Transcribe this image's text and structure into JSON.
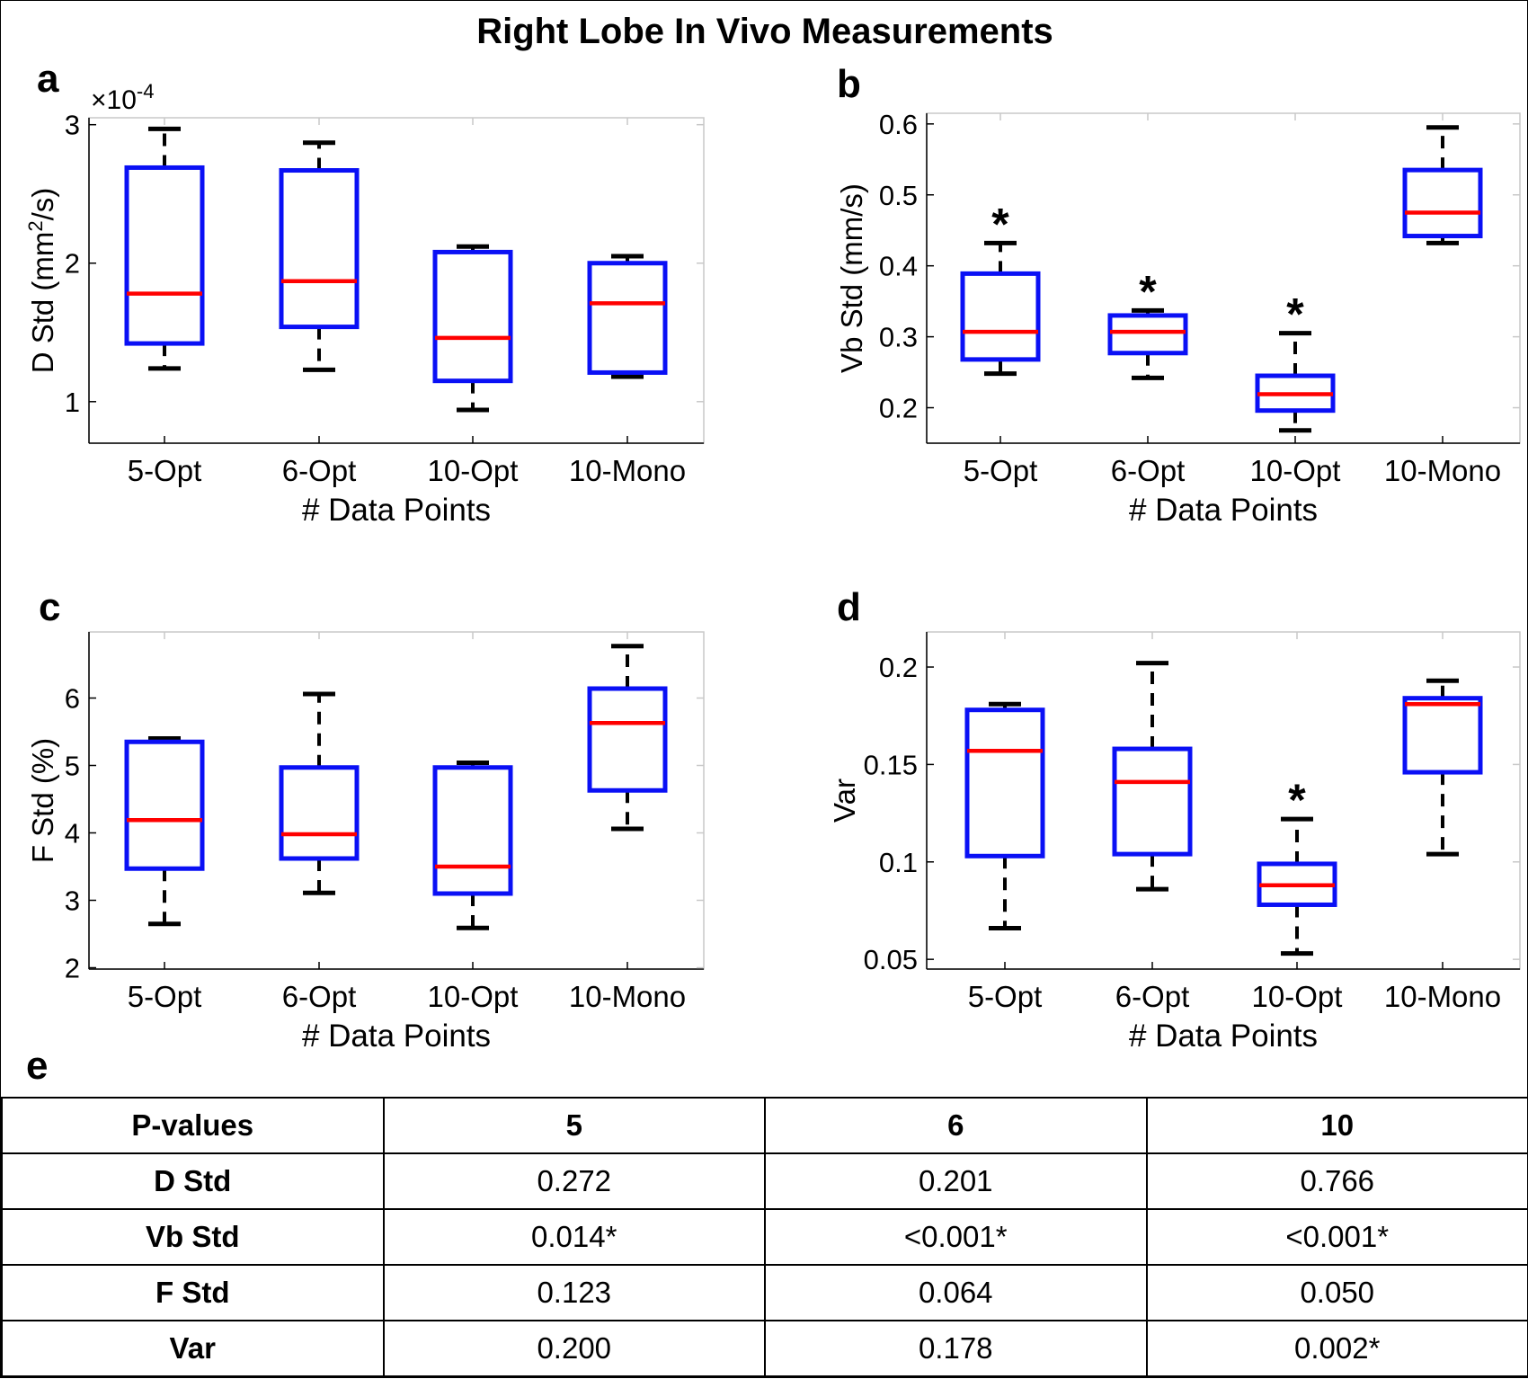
{
  "title": "Right Lobe In Vivo Measurements",
  "colors": {
    "box": "#0a10f5",
    "median": "#ff0000",
    "whisker": "#000000",
    "axis": "#000000",
    "frame": "#c8c8c8"
  },
  "chart_data": [
    {
      "panel": "a",
      "type": "box",
      "title": "",
      "xlabel": "# Data Points",
      "ylabel_main": "D Std (mm",
      "ylabel_sup": "2",
      "ylabel_tail": "/s)",
      "ylim": [
        0.7,
        3.05
      ],
      "yticks": [
        1,
        2,
        3
      ],
      "ytick_labels": [
        "1",
        "2",
        "3"
      ],
      "exponent_prefix": "×10",
      "exponent_power": "-4",
      "categories": [
        "5-Opt",
        "6-Opt",
        "10-Opt",
        "10-Mono"
      ],
      "boxes": [
        {
          "whislo": 1.24,
          "q1": 1.42,
          "med": 1.78,
          "q3": 2.69,
          "whishi": 2.97,
          "sig": ""
        },
        {
          "whislo": 1.23,
          "q1": 1.54,
          "med": 1.87,
          "q3": 2.67,
          "whishi": 2.87,
          "sig": ""
        },
        {
          "whislo": 0.94,
          "q1": 1.15,
          "med": 1.46,
          "q3": 2.08,
          "whishi": 2.12,
          "sig": ""
        },
        {
          "whislo": 1.18,
          "q1": 1.21,
          "med": 1.71,
          "q3": 2.0,
          "whishi": 2.05,
          "sig": ""
        }
      ]
    },
    {
      "panel": "b",
      "type": "box",
      "title": "",
      "xlabel": "# Data Points",
      "ylabel_main": "Vb Std (mm/s)",
      "ylabel_sup": "",
      "ylabel_tail": "",
      "ylim": [
        0.15,
        0.615
      ],
      "yticks": [
        0.2,
        0.3,
        0.4,
        0.5,
        0.6
      ],
      "ytick_labels": [
        "0.2",
        "0.3",
        "0.4",
        "0.5",
        "0.6"
      ],
      "exponent_prefix": "",
      "exponent_power": "",
      "categories": [
        "5-Opt",
        "6-Opt",
        "10-Opt",
        "10-Mono"
      ],
      "boxes": [
        {
          "whislo": 0.248,
          "q1": 0.268,
          "med": 0.307,
          "q3": 0.389,
          "whishi": 0.432,
          "sig": "*"
        },
        {
          "whislo": 0.242,
          "q1": 0.277,
          "med": 0.307,
          "q3": 0.33,
          "whishi": 0.337,
          "sig": "*"
        },
        {
          "whislo": 0.168,
          "q1": 0.196,
          "med": 0.219,
          "q3": 0.245,
          "whishi": 0.305,
          "sig": "*"
        },
        {
          "whislo": 0.432,
          "q1": 0.442,
          "med": 0.475,
          "q3": 0.535,
          "whishi": 0.595,
          "sig": ""
        }
      ]
    },
    {
      "panel": "c",
      "type": "box",
      "title": "",
      "xlabel": "# Data Points",
      "ylabel_main": "F Std (%)",
      "ylabel_sup": "",
      "ylabel_tail": "",
      "ylim": [
        1.98,
        6.98
      ],
      "yticks": [
        2,
        3,
        4,
        5,
        6
      ],
      "ytick_labels": [
        "2",
        "3",
        "4",
        "5",
        "6"
      ],
      "exponent_prefix": "",
      "exponent_power": "",
      "categories": [
        "5-Opt",
        "6-Opt",
        "10-Opt",
        "10-Mono"
      ],
      "boxes": [
        {
          "whislo": 2.65,
          "q1": 3.47,
          "med": 4.19,
          "q3": 5.35,
          "whishi": 5.4,
          "sig": ""
        },
        {
          "whislo": 3.11,
          "q1": 3.62,
          "med": 3.98,
          "q3": 4.97,
          "whishi": 6.06,
          "sig": ""
        },
        {
          "whislo": 2.59,
          "q1": 3.1,
          "med": 3.5,
          "q3": 4.97,
          "whishi": 5.04,
          "sig": ""
        },
        {
          "whislo": 4.06,
          "q1": 4.63,
          "med": 5.63,
          "q3": 6.14,
          "whishi": 6.77,
          "sig": ""
        }
      ]
    },
    {
      "panel": "d",
      "type": "box",
      "title": "",
      "xlabel": "# Data Points",
      "ylabel_main": "Var",
      "ylabel_sup": "",
      "ylabel_tail": "",
      "ylim": [
        0.045,
        0.218
      ],
      "yticks": [
        0.05,
        0.1,
        0.15,
        0.2
      ],
      "ytick_labels": [
        "0.05",
        "0.1",
        "0.15",
        "0.2"
      ],
      "exponent_prefix": "",
      "exponent_power": "",
      "categories": [
        "5-Opt",
        "6-Opt",
        "10-Opt",
        "10-Mono"
      ],
      "boxes": [
        {
          "whislo": 0.066,
          "q1": 0.103,
          "med": 0.157,
          "q3": 0.178,
          "whishi": 0.181,
          "sig": ""
        },
        {
          "whislo": 0.086,
          "q1": 0.104,
          "med": 0.141,
          "q3": 0.158,
          "whishi": 0.202,
          "sig": ""
        },
        {
          "whislo": 0.053,
          "q1": 0.078,
          "med": 0.088,
          "q3": 0.099,
          "whishi": 0.122,
          "sig": "*"
        },
        {
          "whislo": 0.104,
          "q1": 0.146,
          "med": 0.181,
          "q3": 0.184,
          "whishi": 0.193,
          "sig": ""
        }
      ]
    }
  ],
  "table": {
    "letter": "e",
    "headers": [
      "P-values",
      "5",
      "6",
      "10"
    ],
    "rows": [
      {
        "label": "D Std",
        "values": [
          "0.272",
          "0.201",
          "0.766"
        ]
      },
      {
        "label": "Vb Std",
        "values": [
          "0.014*",
          "<0.001*",
          "<0.001*"
        ]
      },
      {
        "label": "F Std",
        "values": [
          "0.123",
          "0.064",
          "0.050"
        ]
      },
      {
        "label": "Var",
        "values": [
          "0.200",
          "0.178",
          "0.002*"
        ]
      }
    ]
  }
}
